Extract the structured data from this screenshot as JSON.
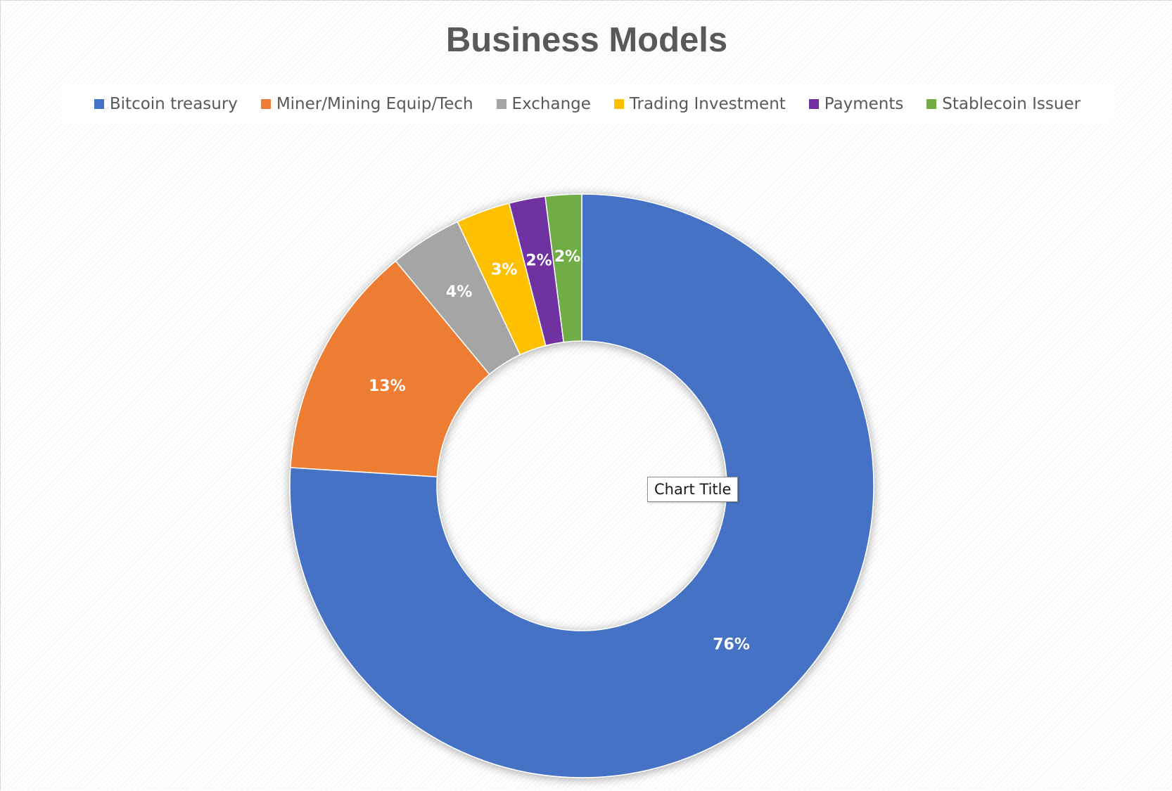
{
  "chart_data": {
    "type": "pie",
    "style": "donut",
    "title": "Business Models",
    "legend_position": "top",
    "data_labels": "percent",
    "categories": [
      "Bitcoin treasury",
      "Miner/Mining Equip/Tech",
      "Exchange",
      "Trading Investment",
      "Payments",
      "Stablecoin Issuer"
    ],
    "values": [
      76,
      13,
      4,
      3,
      2,
      2
    ],
    "labels": [
      "76%",
      "13%",
      "4%",
      "3%",
      "2%",
      "2%"
    ],
    "colors": [
      "#4472C4",
      "#ED7D31",
      "#A5A5A5",
      "#FFC000",
      "#7030A0",
      "#70AD47"
    ]
  },
  "tooltip": {
    "text": "Chart Title"
  }
}
